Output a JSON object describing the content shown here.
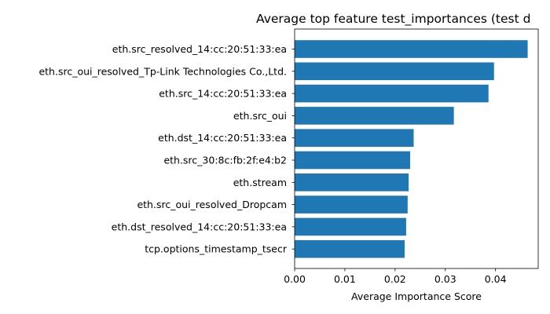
{
  "chart_data": {
    "type": "bar",
    "orientation": "horizontal",
    "title": "Average top feature test_importances (test d",
    "xlabel": "Average Importance Score",
    "ylabel": "",
    "xlim": [
      0,
      0.0485
    ],
    "xticks": [
      "0.00",
      "0.01",
      "0.02",
      "0.03",
      "0.04"
    ],
    "xtick_values": [
      0,
      0.01,
      0.02,
      0.03,
      0.04
    ],
    "bar_color": "#1f77b4",
    "grid": false,
    "categories": [
      "eth.src_resolved_14:cc:20:51:33:ea",
      "eth.src_oui_resolved_Tp-Link Technologies Co.,Ltd.",
      "eth.src_14:cc:20:51:33:ea",
      "eth.src_oui",
      "eth.dst_14:cc:20:51:33:ea",
      "eth.src_30:8c:fb:2f:e4:b2",
      "eth.stream",
      "eth.src_oui_resolved_Dropcam",
      "eth.dst_resolved_14:cc:20:51:33:ea",
      "tcp.options_timestamp_tsecr"
    ],
    "values": [
      0.0464,
      0.0397,
      0.0386,
      0.0317,
      0.0237,
      0.023,
      0.0227,
      0.0225,
      0.0222,
      0.0219
    ]
  }
}
